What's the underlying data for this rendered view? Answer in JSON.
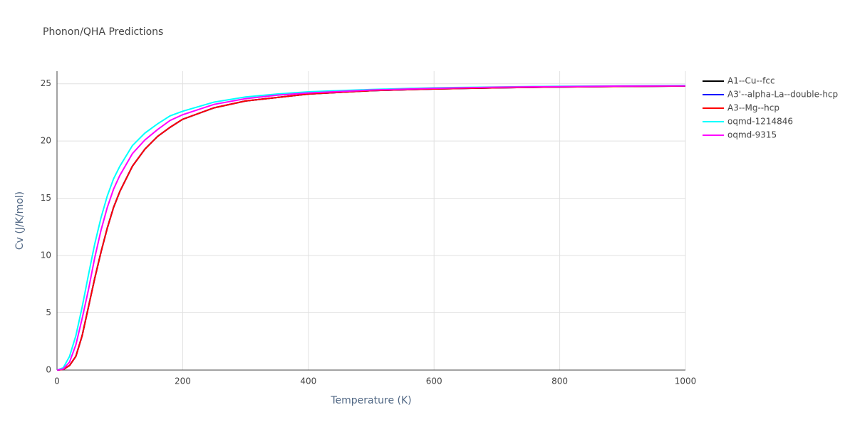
{
  "chart_data": {
    "type": "line",
    "title": "Phonon/QHA Predictions",
    "x_label": "Temperature (K)",
    "y_label": "Cv (J/K/mol)",
    "x": [
      0,
      10,
      20,
      30,
      40,
      50,
      60,
      70,
      80,
      90,
      100,
      120,
      140,
      160,
      180,
      200,
      250,
      300,
      350,
      400,
      500,
      600,
      700,
      800,
      900,
      1000
    ],
    "series": [
      {
        "name": "A1--Cu--fcc",
        "color": "#000000",
        "values": [
          0,
          0.05,
          0.4,
          1.2,
          3,
          5.5,
          8,
          10.3,
          12.4,
          14.2,
          15.6,
          17.8,
          19.3,
          20.4,
          21.2,
          21.9,
          22.9,
          23.5,
          23.8,
          24.1,
          24.4,
          24.55,
          24.65,
          24.72,
          24.77,
          24.8
        ]
      },
      {
        "name": "A3'--alpha-La--double-hcp",
        "color": "#0000ff",
        "values": [
          0,
          0.05,
          0.4,
          1.2,
          3,
          5.5,
          8,
          10.3,
          12.4,
          14.2,
          15.6,
          17.8,
          19.3,
          20.4,
          21.2,
          21.9,
          22.9,
          23.5,
          23.8,
          24.1,
          24.4,
          24.55,
          24.65,
          24.72,
          24.77,
          24.8
        ]
      },
      {
        "name": "A3--Mg--hcp",
        "color": "#ff0000",
        "values": [
          0,
          0.05,
          0.4,
          1.2,
          3,
          5.5,
          8,
          10.3,
          12.4,
          14.2,
          15.6,
          17.8,
          19.3,
          20.4,
          21.2,
          21.9,
          22.9,
          23.5,
          23.8,
          24.1,
          24.4,
          24.55,
          24.65,
          24.72,
          24.77,
          24.8
        ]
      },
      {
        "name": "oqmd-1214846",
        "color": "#00ffff",
        "values": [
          0,
          0.2,
          1.2,
          3,
          5.5,
          8.3,
          11,
          13.3,
          15.2,
          16.7,
          17.8,
          19.6,
          20.7,
          21.5,
          22.2,
          22.6,
          23.4,
          23.85,
          24.1,
          24.3,
          24.5,
          24.65,
          24.72,
          24.78,
          24.82,
          24.85
        ]
      },
      {
        "name": "oqmd-9315",
        "color": "#ff00ff",
        "values": [
          0,
          0.1,
          0.7,
          2.2,
          4.5,
          7,
          9.8,
          12.2,
          14.2,
          15.8,
          17,
          18.9,
          20.1,
          21,
          21.8,
          22.3,
          23.2,
          23.7,
          24,
          24.2,
          24.45,
          24.6,
          24.7,
          24.75,
          24.8,
          24.82
        ]
      }
    ],
    "xlim": [
      0,
      1000
    ],
    "ylim": [
      0,
      26.1
    ],
    "xticks": [
      0,
      200,
      400,
      600,
      800,
      1000
    ],
    "yticks": [
      0,
      5,
      10,
      15,
      20,
      25
    ],
    "grid": true
  }
}
